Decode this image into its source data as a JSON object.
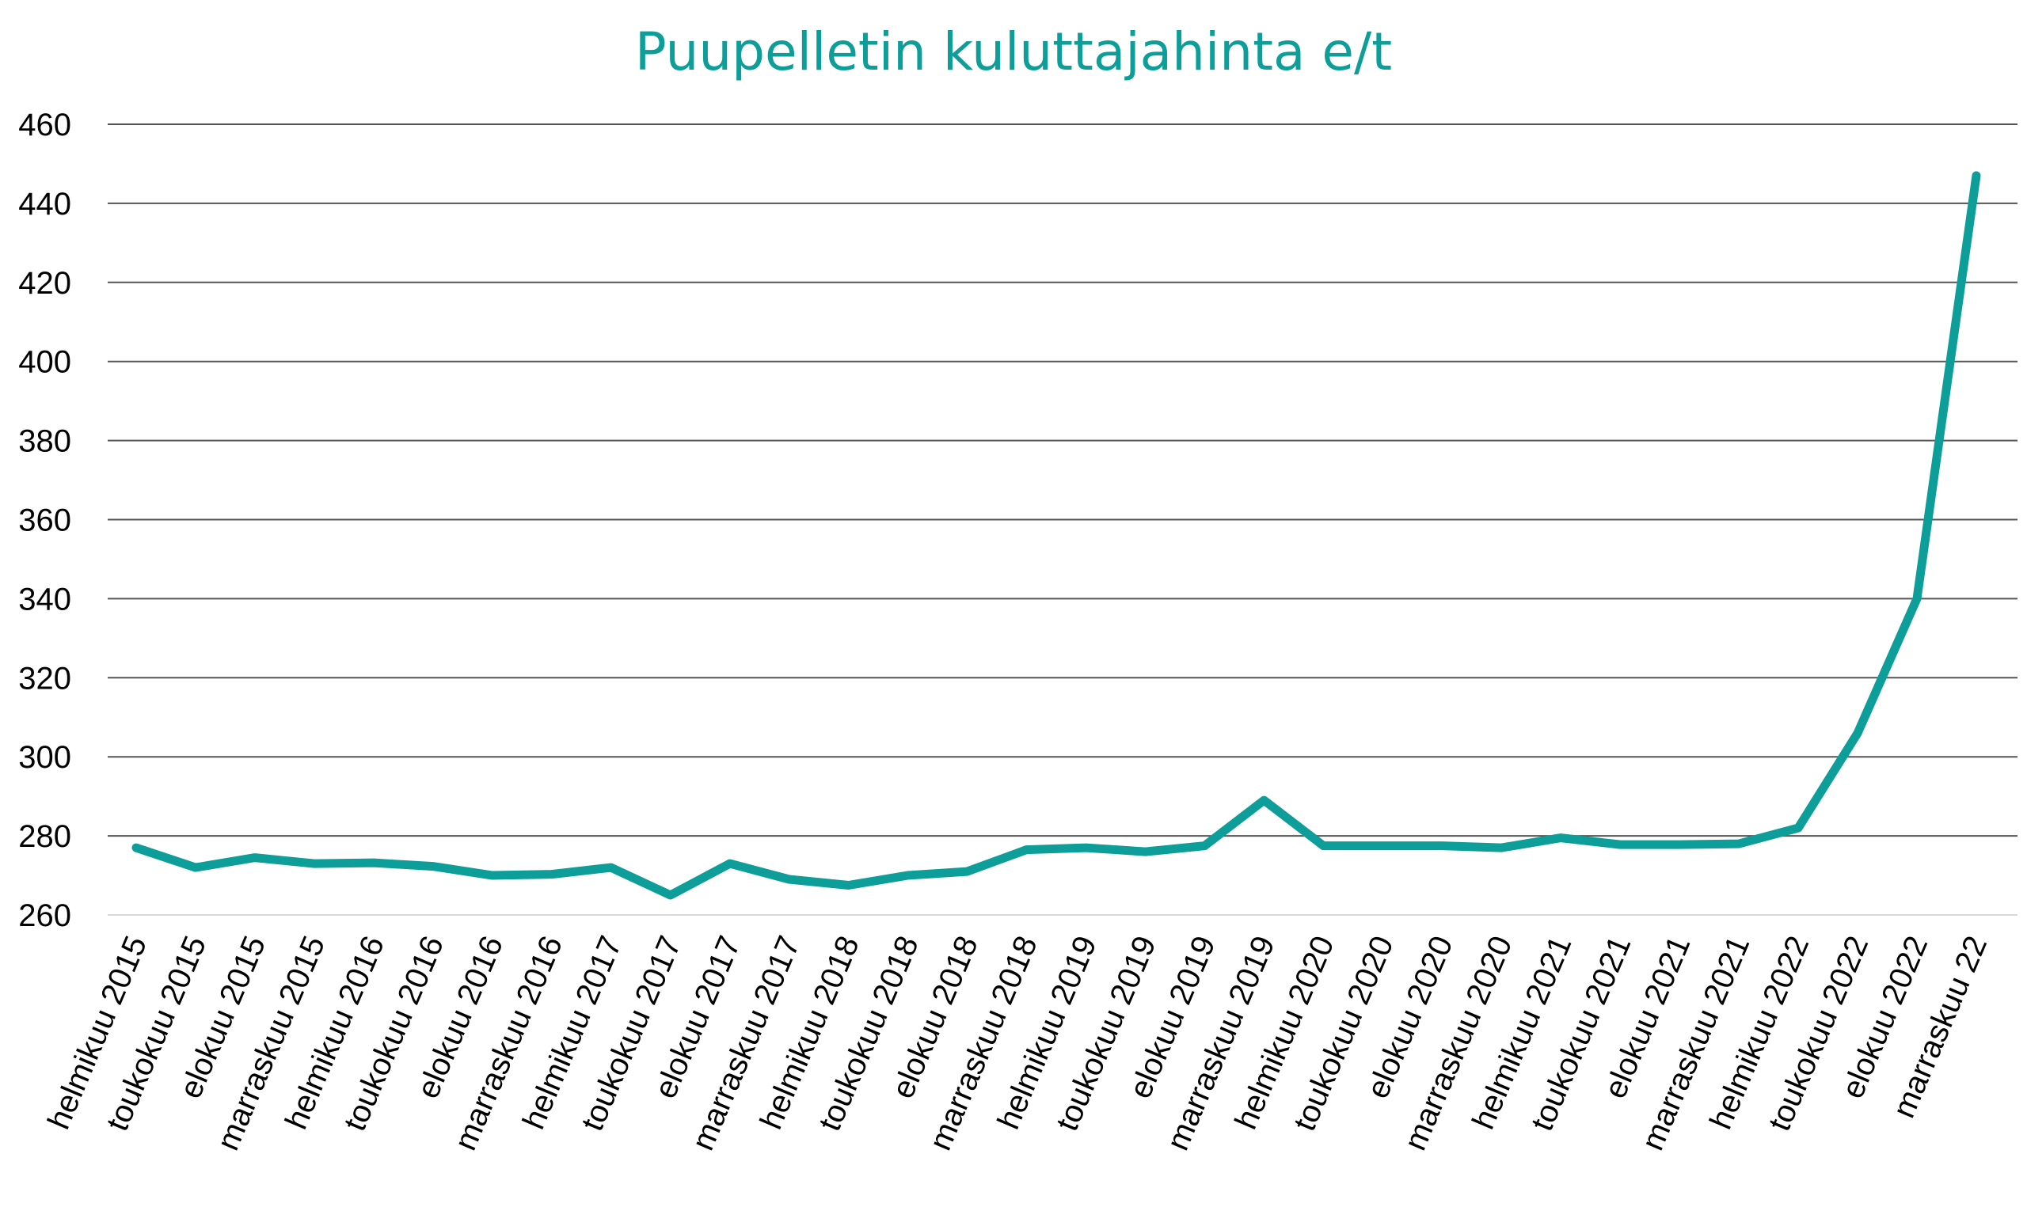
{
  "chart_data": {
    "type": "line",
    "title": "Puupelletin kuluttajahinta e/t",
    "xlabel": "",
    "ylabel": "",
    "ylim": [
      260,
      460
    ],
    "yticks": [
      260,
      280,
      300,
      320,
      340,
      360,
      380,
      400,
      420,
      440,
      460
    ],
    "grid": true,
    "legend": "none",
    "categories": [
      "helmikuu 2015",
      "toukokuu 2015",
      "elokuu 2015",
      "marraskuu 2015",
      "helmikuu 2016",
      "toukokuu 2016",
      "elokuu 2016",
      "marraskuu 2016",
      "helmikuu 2017",
      "toukokuu 2017",
      "elokuu 2017",
      "marraskuu 2017",
      "helmikuu 2018",
      "toukokuu 2018",
      "elokuu 2018",
      "marraskuu 2018",
      "helmikuu 2019",
      "toukokuu 2019",
      "elokuu 2019",
      "marraskuu 2019",
      "helmikuu 2020",
      "toukokuu 2020",
      "elokuu 2020",
      "marraskuu 2020",
      "helmikuu 2021",
      "toukokuu 2021",
      "elokuu 2021",
      "marraskuu 2021",
      "helmikuu 2022",
      "toukokuu 2022",
      "elokuu 2022",
      "marraskuu 22"
    ],
    "series": [
      {
        "values": [
          277,
          272,
          274.5,
          273,
          273.2,
          272.3,
          270,
          270.3,
          272,
          265,
          273,
          269,
          267.5,
          270,
          271,
          276.5,
          277,
          276,
          277.5,
          289,
          277.5,
          277.5,
          277.5,
          277,
          279.5,
          277.8,
          277.8,
          278,
          282,
          306,
          340,
          447
        ],
        "color": "#0d9e99"
      }
    ]
  },
  "colors": {
    "title": "#0d9e99",
    "line": "#0d9e99",
    "grid": "#555555",
    "baseline": "#d9d9d9",
    "text": "#000000"
  }
}
